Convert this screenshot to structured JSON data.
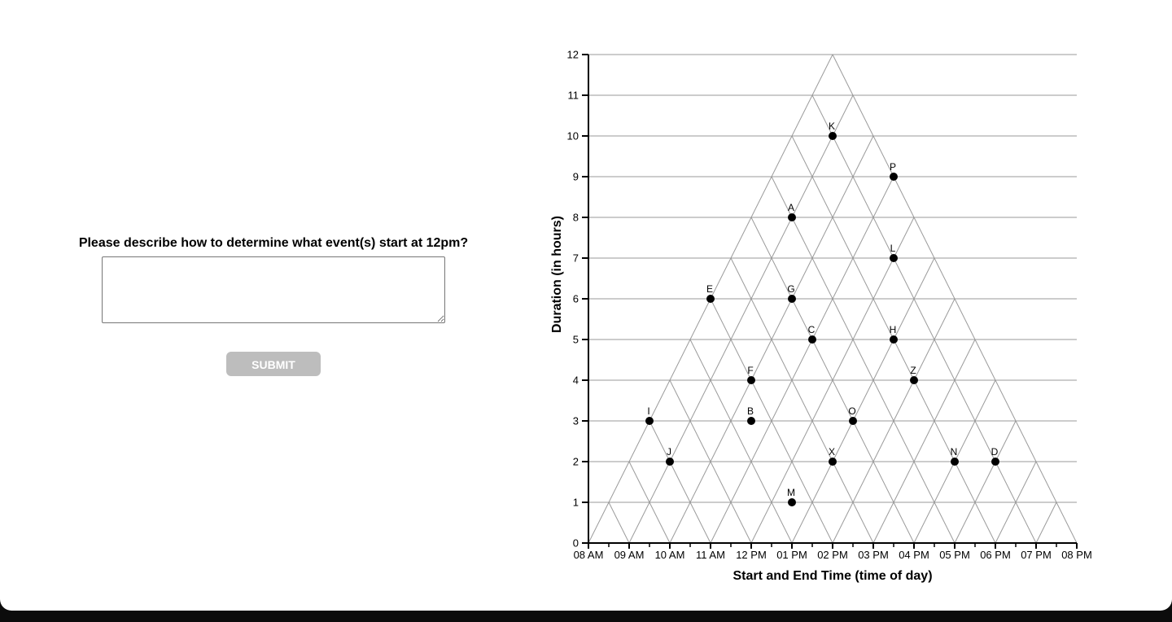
{
  "question": {
    "prompt": "Please describe how to determine what event(s) start at 12pm?",
    "answer_value": "",
    "submit_label": "SUBMIT"
  },
  "chart_data": {
    "type": "scatter",
    "title": "",
    "xlabel": "Start and End Time (time of day)",
    "ylabel": "Duration (in hours)",
    "x_tick_labels": [
      "08 AM",
      "09 AM",
      "10 AM",
      "11 AM",
      "12 PM",
      "01 PM",
      "02 PM",
      "03 PM",
      "04 PM",
      "05 PM",
      "06 PM",
      "07 PM",
      "08 PM"
    ],
    "y_tick_labels": [
      "0",
      "1",
      "2",
      "3",
      "4",
      "5",
      "6",
      "7",
      "8",
      "9",
      "10",
      "11",
      "12"
    ],
    "xlim": [
      8,
      20
    ],
    "ylim": [
      0,
      12
    ],
    "grid": "triangular",
    "points": [
      {
        "label": "K",
        "x": 14,
        "y": 10
      },
      {
        "label": "P",
        "x": 15.5,
        "y": 9
      },
      {
        "label": "A",
        "x": 13,
        "y": 8
      },
      {
        "label": "L",
        "x": 15.5,
        "y": 7
      },
      {
        "label": "E",
        "x": 11,
        "y": 6
      },
      {
        "label": "G",
        "x": 13,
        "y": 6
      },
      {
        "label": "C",
        "x": 13.5,
        "y": 5
      },
      {
        "label": "H",
        "x": 15.5,
        "y": 5
      },
      {
        "label": "F",
        "x": 12,
        "y": 4
      },
      {
        "label": "Z",
        "x": 16,
        "y": 4
      },
      {
        "label": "I",
        "x": 9.5,
        "y": 3
      },
      {
        "label": "B",
        "x": 12,
        "y": 3
      },
      {
        "label": "O",
        "x": 14.5,
        "y": 3
      },
      {
        "label": "J",
        "x": 10,
        "y": 2
      },
      {
        "label": "X",
        "x": 14,
        "y": 2
      },
      {
        "label": "N",
        "x": 17,
        "y": 2
      },
      {
        "label": "D",
        "x": 18,
        "y": 2
      },
      {
        "label": "M",
        "x": 13,
        "y": 1
      }
    ]
  }
}
